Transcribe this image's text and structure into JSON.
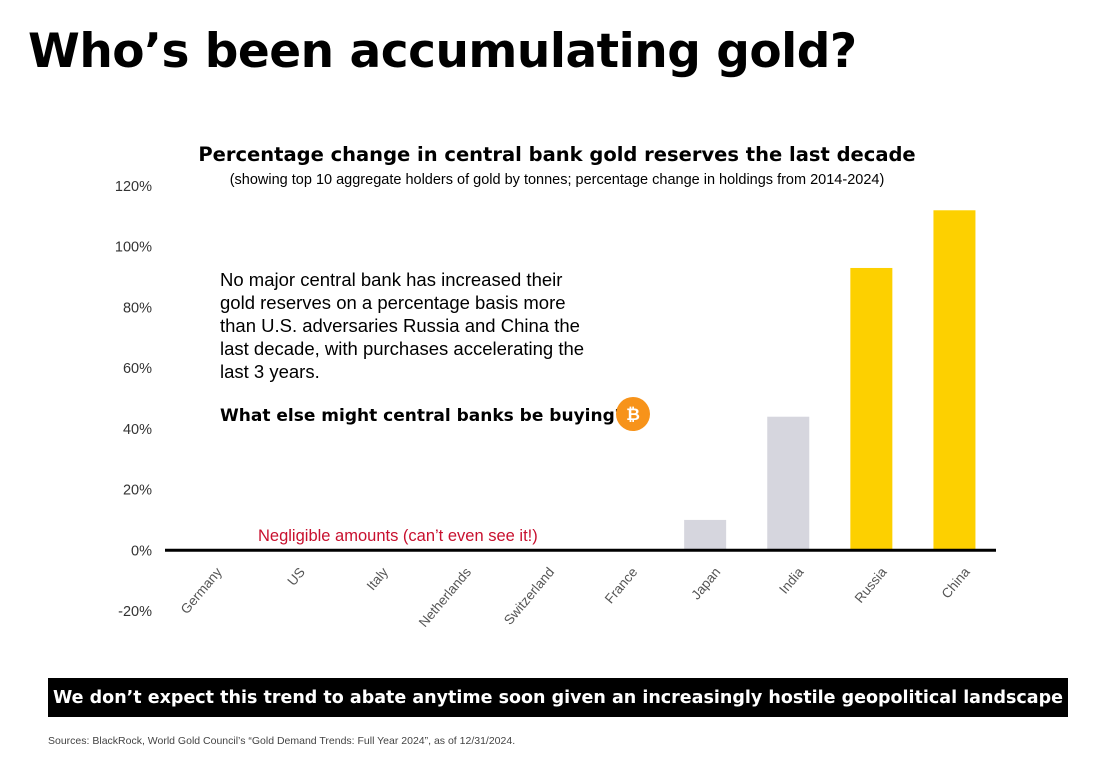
{
  "page": {
    "title": "Who’s been accumulating gold?",
    "banner": "We don’t expect this trend to abate anytime soon given an increasingly hostile geopolitical landscape",
    "sources": "Sources: BlackRock, World Gold Council’s “Gold Demand Trends: Full Year 2024”, as of 12/31/2024."
  },
  "annotation": {
    "lines": [
      "No major central bank has increased their",
      "gold reserves on a percentage basis more",
      "than U.S. adversaries Russia and China the",
      "last decade, with purchases accelerating the",
      "last 3 years."
    ],
    "question": "What else might central banks be buying?",
    "question_icon": "bitcoin-icon",
    "negligible": "Negligible amounts (can’t even see it!)"
  },
  "chart_data": {
    "type": "bar",
    "title": "Percentage change in central bank gold reserves the last decade",
    "subtitle": "(showing top 10 aggregate holders of gold by tonnes; percentage change in holdings from 2014-2024)",
    "xlabel": "",
    "ylabel": "",
    "categories": [
      "Germany",
      "US",
      "Italy",
      "Netherlands",
      "Switzerland",
      "France",
      "Japan",
      "India",
      "Russia",
      "China"
    ],
    "values": [
      0,
      0,
      0,
      0,
      0,
      0,
      10,
      44,
      93,
      112
    ],
    "colors": [
      "#d6d6de",
      "#d6d6de",
      "#d6d6de",
      "#d6d6de",
      "#d6d6de",
      "#d6d6de",
      "#d6d6de",
      "#d6d6de",
      "#fdd000",
      "#fdd000"
    ],
    "ylim": [
      -20,
      120
    ],
    "yticks": [
      120,
      100,
      80,
      60,
      40,
      20,
      0,
      -20
    ],
    "ytick_labels": [
      "120%",
      "100%",
      "80%",
      "60%",
      "40%",
      "20%",
      "0%",
      "-20%"
    ],
    "grid": false,
    "legend": "none"
  }
}
